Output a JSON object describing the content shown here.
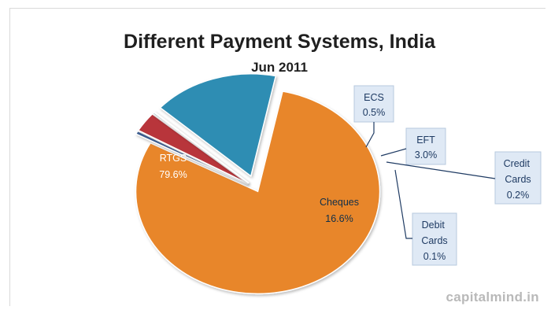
{
  "chart_data": {
    "type": "pie",
    "title": "Different Payment Systems, India",
    "subtitle": "Jun 2011",
    "slices": [
      {
        "name": "RTGS",
        "value": 79.6,
        "label": "79.6%",
        "color": "#e8862a"
      },
      {
        "name": "ECS",
        "value": 0.5,
        "label": "0.5%",
        "color": "#3e5f93"
      },
      {
        "name": "EFT",
        "value": 3.0,
        "label": "3.0%",
        "color": "#b8343b"
      },
      {
        "name": "Credit Cards",
        "value": 0.2,
        "label": "0.2%",
        "color": "#2f8a95"
      },
      {
        "name": "Debit Cards",
        "value": 0.1,
        "label": "0.1%",
        "color": "#5a7da8"
      },
      {
        "name": "Cheques",
        "value": 16.6,
        "label": "16.6%",
        "color": "#2e8db3"
      }
    ]
  },
  "watermark": "capitalmind.in"
}
